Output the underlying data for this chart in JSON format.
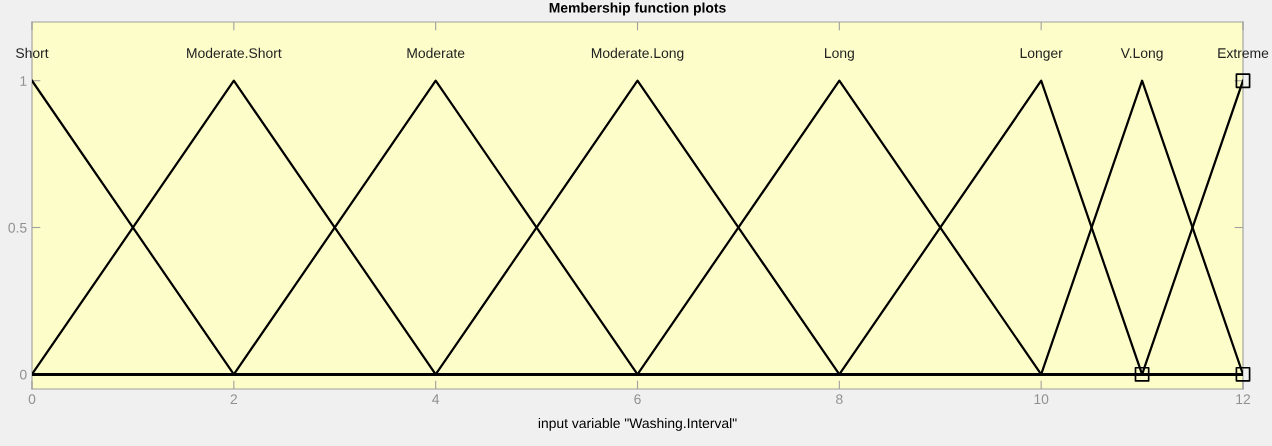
{
  "chart_data": {
    "type": "line",
    "title": "Membership function plots",
    "xlabel": "input variable \"Washing.Interval\"",
    "series": [
      {
        "name": "Short",
        "color": "#000000",
        "x": [
          0,
          2,
          12
        ],
        "values": [
          1,
          0,
          0
        ]
      },
      {
        "name": "Moderate.Short",
        "color": "#000000",
        "x": [
          0,
          2,
          4,
          12
        ],
        "values": [
          0,
          1,
          0,
          0
        ]
      },
      {
        "name": "Moderate",
        "color": "#000000",
        "x": [
          0,
          2,
          4,
          6,
          12
        ],
        "values": [
          0,
          0,
          1,
          0,
          0
        ]
      },
      {
        "name": "Moderate.Long",
        "color": "#000000",
        "x": [
          0,
          4,
          6,
          8,
          12
        ],
        "values": [
          0,
          0,
          1,
          0,
          0
        ]
      },
      {
        "name": "Long",
        "color": "#000000",
        "x": [
          0,
          6,
          8,
          10,
          12
        ],
        "values": [
          0,
          0,
          1,
          0,
          0
        ]
      },
      {
        "name": "Longer",
        "color": "#000000",
        "x": [
          0,
          8,
          10,
          11,
          12
        ],
        "values": [
          0,
          0,
          1,
          0,
          0
        ]
      },
      {
        "name": "V.Long",
        "color": "#000000",
        "x": [
          0,
          10,
          11,
          12
        ],
        "values": [
          0,
          0,
          1,
          0
        ]
      },
      {
        "name": "Extreme",
        "color": "#000000",
        "x": [
          0,
          11,
          12
        ],
        "values": [
          0,
          0,
          1
        ]
      },
      {
        "type": "scatter",
        "marker": "square",
        "color": "#000000",
        "x": [
          11,
          12,
          12
        ],
        "values": [
          0,
          1,
          0
        ]
      }
    ],
    "xlim": [
      0,
      12
    ],
    "xticks": [
      0,
      2,
      4,
      6,
      8,
      10,
      12
    ],
    "ylim": [
      -0.05,
      1.2
    ],
    "yticks": [
      0,
      0.5,
      1
    ],
    "grid": false,
    "legend": false,
    "marker": "none",
    "line_style": "solid"
  }
}
